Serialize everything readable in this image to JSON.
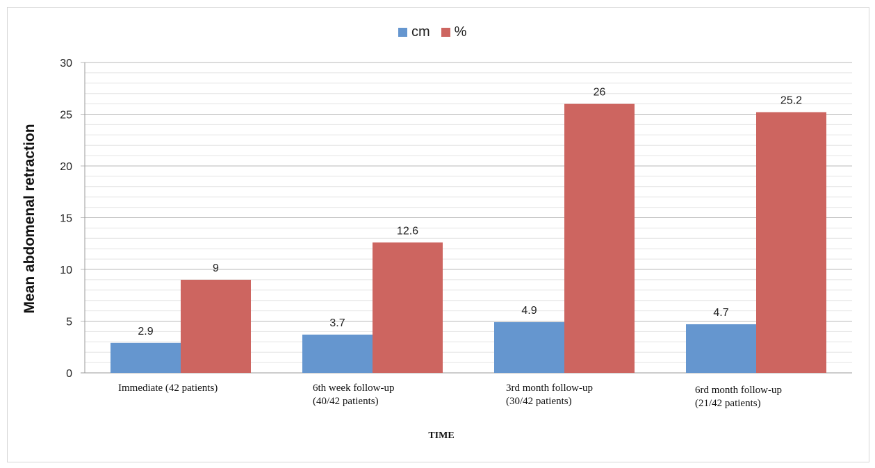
{
  "chart_data": {
    "type": "bar",
    "categories": [
      "Immediate (42 patients)",
      "6th week follow-up\n(40/42 patients)",
      "3rd month follow-up\n(30/42 patients)",
      "6rd month follow-up\n(21/42 patients)"
    ],
    "series": [
      {
        "name": "cm",
        "values": [
          2.9,
          3.7,
          4.9,
          4.7
        ],
        "color": "#6596cf",
        "data_labels": [
          "2.9",
          "3.7",
          "4.9",
          "4.7"
        ]
      },
      {
        "name": "%",
        "values": [
          9,
          12.6,
          26,
          25.2
        ],
        "color": "#cd6560",
        "data_labels": [
          "9",
          "12.6",
          "26",
          "25.2"
        ]
      }
    ],
    "xlabel": "TIME",
    "ylabel": "Mean abdomenal retraction",
    "ylim": [
      0,
      30
    ],
    "yticks": [
      "0",
      "5",
      "10",
      "15",
      "20",
      "25",
      "30"
    ],
    "grid": true,
    "legend_position": "top-center"
  }
}
